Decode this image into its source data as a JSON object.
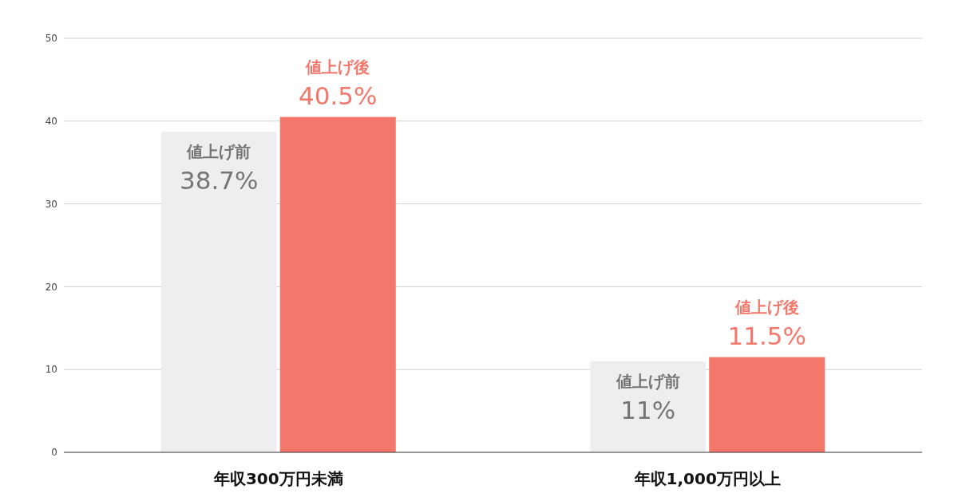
{
  "chart_data": {
    "type": "bar",
    "categories": [
      "年収300万円未満",
      "年収1,000万円以上"
    ],
    "series": [
      {
        "name": "値上げ前",
        "color": "#eeeeee",
        "values": [
          38.7,
          11
        ],
        "value_labels": [
          "38.7%",
          "11%"
        ]
      },
      {
        "name": "値上げ後",
        "color": "#f4776b",
        "values": [
          40.5,
          11.5
        ],
        "value_labels": [
          "40.5%",
          "11.5%"
        ]
      }
    ],
    "ylim": [
      0,
      50
    ],
    "yticks": [
      0,
      10,
      20,
      30,
      40,
      50
    ],
    "grid": "y"
  }
}
